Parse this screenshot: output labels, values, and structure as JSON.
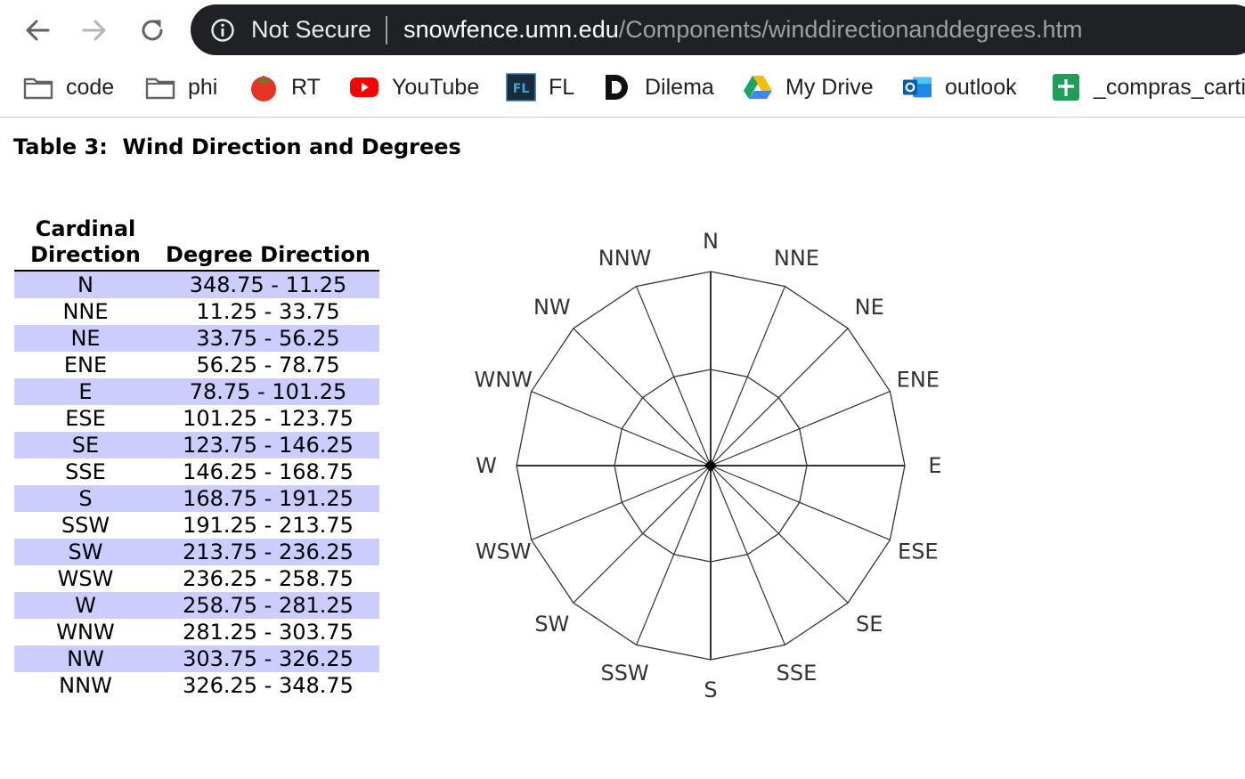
{
  "browser": {
    "security_label": "Not Secure",
    "url_host": "snowfence.umn.edu",
    "url_path": "/Components/winddirectionanddegrees.htm",
    "nav_icons": [
      "back-arrow-icon",
      "forward-arrow-icon",
      "reload-icon",
      "info-icon"
    ]
  },
  "bookmarks": [
    {
      "label": "code",
      "icon": "folder-icon"
    },
    {
      "label": "phi",
      "icon": "folder-icon"
    },
    {
      "label": "RT",
      "icon": "tomato-icon"
    },
    {
      "label": "YouTube",
      "icon": "youtube-icon"
    },
    {
      "label": "FL",
      "icon": "fl-icon"
    },
    {
      "label": "Dilema",
      "icon": "dilema-icon"
    },
    {
      "label": "My Drive",
      "icon": "google-drive-icon"
    },
    {
      "label": "outlook",
      "icon": "outlook-icon"
    },
    {
      "label": "_compras_carti",
      "icon": "google-sheets-icon"
    }
  ],
  "page": {
    "title": "Table 3:  Wind Direction and Degrees",
    "table": {
      "headers": [
        "Cardinal Direction",
        "Degree Direction"
      ],
      "rows": [
        [
          "N",
          "348.75 - 11.25"
        ],
        [
          "NNE",
          "11.25 - 33.75"
        ],
        [
          "NE",
          "33.75 - 56.25"
        ],
        [
          "ENE",
          "56.25 - 78.75"
        ],
        [
          "E",
          "78.75 - 101.25"
        ],
        [
          "ESE",
          "101.25 - 123.75"
        ],
        [
          "SE",
          "123.75 - 146.25"
        ],
        [
          "SSE",
          "146.25 - 168.75"
        ],
        [
          "S",
          "168.75 - 191.25"
        ],
        [
          "SSW",
          "191.25 - 213.75"
        ],
        [
          "SW",
          "213.75 - 236.25"
        ],
        [
          "WSW",
          "236.25 - 258.75"
        ],
        [
          "W",
          "258.75 - 281.25"
        ],
        [
          "WNW",
          "281.25 - 303.75"
        ],
        [
          "NW",
          "303.75 - 326.25"
        ],
        [
          "NNW",
          "326.25 - 348.75"
        ]
      ],
      "shade_color": "#ccccff"
    },
    "compass": {
      "directions": [
        "N",
        "NNE",
        "NE",
        "ENE",
        "E",
        "ESE",
        "SE",
        "SSE",
        "S",
        "SSW",
        "SW",
        "WSW",
        "W",
        "WNW",
        "NW",
        "NNW"
      ]
    }
  }
}
